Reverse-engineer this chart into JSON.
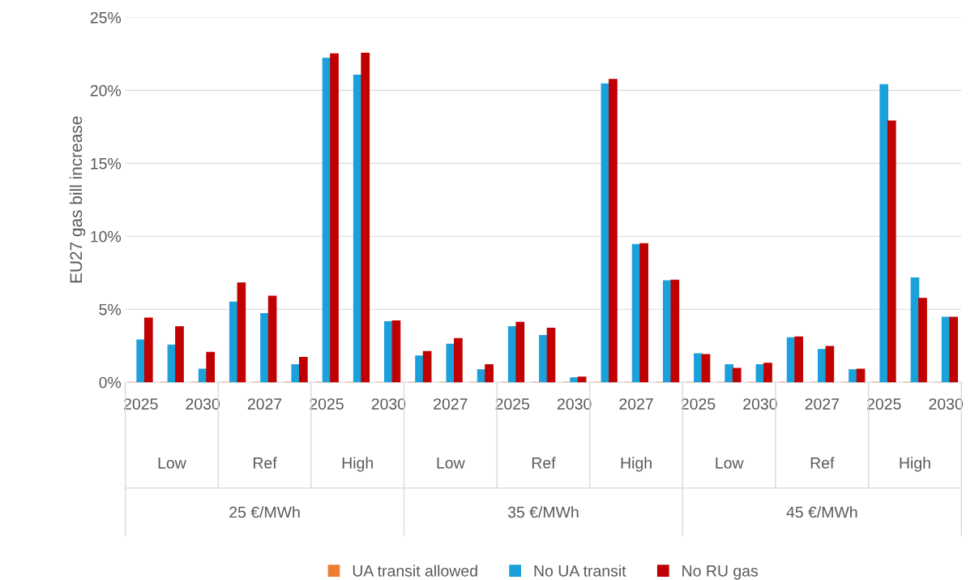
{
  "chart_data": {
    "type": "bar",
    "ylabel": "EU27 gas bill increase",
    "categories": [
      "2025",
      null,
      "2030",
      null,
      "2027",
      null,
      "2025",
      null,
      "2030",
      null,
      "2027",
      null,
      "2025",
      null,
      "2030",
      null,
      "2027",
      null,
      "2025",
      null,
      "2030",
      null,
      "2027",
      null,
      "2025",
      null,
      "2030"
    ],
    "series": [
      {
        "name": "UA transit allowed",
        "color": "#ed7d31",
        "values": [
          0,
          0,
          0,
          0,
          0,
          0,
          0,
          0,
          0,
          0,
          0,
          0,
          0,
          0,
          0,
          0,
          0,
          0,
          0,
          0,
          0,
          0,
          0,
          0,
          0,
          0,
          0
        ]
      },
      {
        "name": "No UA transit",
        "color": "#1aa0da",
        "values": [
          2.9,
          2.55,
          0.9,
          5.5,
          4.7,
          1.2,
          22.2,
          21.05,
          4.15,
          1.8,
          2.6,
          0.85,
          3.8,
          3.2,
          0.3,
          20.45,
          9.45,
          6.95,
          1.95,
          1.2,
          1.2,
          3.05,
          2.25,
          0.85,
          20.4,
          7.15,
          4.45
        ]
      },
      {
        "name": "No RU gas",
        "color": "#c00000",
        "values": [
          4.4,
          3.8,
          2.05,
          6.8,
          5.9,
          1.7,
          22.5,
          22.55,
          4.2,
          2.1,
          3.0,
          1.2,
          4.1,
          3.7,
          0.35,
          20.75,
          9.5,
          7.0,
          1.9,
          0.95,
          1.3,
          3.1,
          2.45,
          0.9,
          17.9,
          5.75,
          4.45
        ]
      }
    ],
    "ylim": [
      0,
      25
    ],
    "yticks": [
      {
        "value": 0,
        "label": "0%"
      },
      {
        "value": 5,
        "label": "5%"
      },
      {
        "value": 10,
        "label": "10%"
      },
      {
        "value": 15,
        "label": "15%"
      },
      {
        "value": 20,
        "label": "20%"
      },
      {
        "value": 25,
        "label": "25%"
      }
    ],
    "annotations": [
      "Low",
      "Ref",
      "High",
      "Low",
      "Ref",
      "High",
      "Low",
      "Ref",
      "High",
      "25 €/MWh",
      "35 €/MWh",
      "45 €/MWh"
    ],
    "grid": "y",
    "legend": "bottom"
  }
}
